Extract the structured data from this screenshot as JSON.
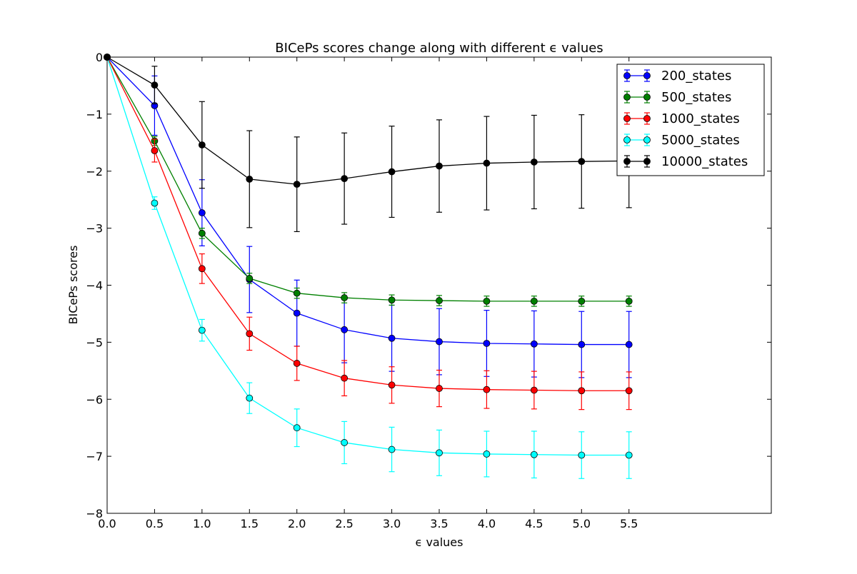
{
  "chart_data": {
    "type": "line",
    "title": "BICePs scores change along with different ϵ values",
    "xlabel": "ϵ values",
    "ylabel": "BICePs scores",
    "xlim": [
      0.0,
      7.0
    ],
    "ylim": [
      -8,
      0
    ],
    "x_ticks": [
      0.0,
      0.5,
      1.0,
      1.5,
      2.0,
      2.5,
      3.0,
      3.5,
      4.0,
      4.5,
      5.0,
      5.5
    ],
    "x_tick_labels": [
      "0.0",
      "0.5",
      "1.0",
      "1.5",
      "2.0",
      "2.5",
      "3.0",
      "3.5",
      "4.0",
      "4.5",
      "5.0",
      "5.5"
    ],
    "y_ticks": [
      0,
      -1,
      -2,
      -3,
      -4,
      -5,
      -6,
      -7,
      -8
    ],
    "y_tick_labels": [
      "0",
      "−1",
      "−2",
      "−3",
      "−4",
      "−5",
      "−6",
      "−7",
      "−8"
    ],
    "grid": false,
    "legend_position": "top-right",
    "x": [
      0.0,
      0.5,
      1.0,
      1.5,
      2.0,
      2.5,
      3.0,
      3.5,
      4.0,
      4.5,
      5.0,
      5.5
    ],
    "series": [
      {
        "name": "200_states",
        "color": "#0000ff",
        "values": [
          0,
          -0.85,
          -2.73,
          -3.9,
          -4.49,
          -4.78,
          -4.93,
          -4.99,
          -5.02,
          -5.03,
          -5.04,
          -5.04
        ],
        "errors": [
          0,
          0.52,
          0.58,
          0.58,
          0.58,
          0.58,
          0.58,
          0.58,
          0.58,
          0.58,
          0.58,
          0.58
        ]
      },
      {
        "name": "500_states",
        "color": "#008000",
        "values": [
          0,
          -1.47,
          -3.09,
          -3.88,
          -4.14,
          -4.22,
          -4.26,
          -4.27,
          -4.28,
          -4.28,
          -4.28,
          -4.28
        ],
        "errors": [
          0,
          0.08,
          0.09,
          0.09,
          0.09,
          0.09,
          0.09,
          0.09,
          0.09,
          0.09,
          0.09,
          0.09
        ]
      },
      {
        "name": "1000_states",
        "color": "#ff0000",
        "values": [
          0,
          -1.64,
          -3.71,
          -4.85,
          -5.37,
          -5.63,
          -5.75,
          -5.81,
          -5.83,
          -5.84,
          -5.85,
          -5.85
        ],
        "errors": [
          0,
          0.2,
          0.26,
          0.29,
          0.3,
          0.31,
          0.32,
          0.32,
          0.33,
          0.33,
          0.33,
          0.33
        ]
      },
      {
        "name": "5000_states",
        "color": "#00ffff",
        "values": [
          0,
          -2.56,
          -4.79,
          -5.98,
          -6.5,
          -6.76,
          -6.88,
          -6.94,
          -6.96,
          -6.97,
          -6.98,
          -6.98
        ],
        "errors": [
          0,
          0.11,
          0.19,
          0.27,
          0.33,
          0.37,
          0.39,
          0.4,
          0.4,
          0.41,
          0.41,
          0.41
        ]
      },
      {
        "name": "10000_states",
        "color": "#000000",
        "values": [
          0,
          -0.49,
          -1.54,
          -2.14,
          -2.23,
          -2.13,
          -2.01,
          -1.91,
          -1.86,
          -1.84,
          -1.83,
          -1.82
        ],
        "errors": [
          0,
          0.33,
          0.76,
          0.85,
          0.83,
          0.8,
          0.8,
          0.81,
          0.82,
          0.82,
          0.82,
          0.82
        ]
      }
    ]
  }
}
